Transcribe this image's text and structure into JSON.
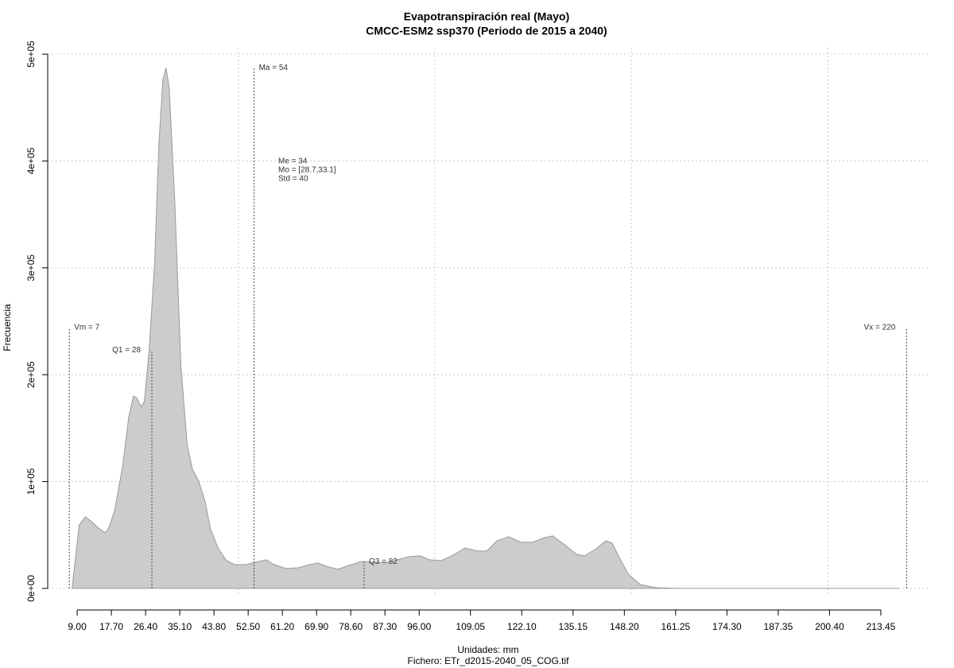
{
  "chart_data": {
    "type": "area",
    "title": "Evapotranspiración real (Mayo)",
    "subtitle": "CMCC-ESM2 ssp370 (Periodo de 2015 a 2040)",
    "xlabel": "Unidades: mm",
    "caption": "Fichero: ETr_d2015-2040_05_COG.tif",
    "ylabel": "Frecuencia",
    "fill_color": "#cccccc",
    "line_color": "#999999",
    "grid": true,
    "xlim": [
      1.5,
      226
    ],
    "ylim": [
      -7500,
      506000
    ],
    "xgrid": [
      50,
      100,
      150,
      200
    ],
    "xticks": [
      {
        "value": 9,
        "label": "9.00"
      },
      {
        "value": 17.7,
        "label": "17.70"
      },
      {
        "value": 26.4,
        "label": "26.40"
      },
      {
        "value": 35.1,
        "label": "35.10"
      },
      {
        "value": 43.8,
        "label": "43.80"
      },
      {
        "value": 52.5,
        "label": "52.50"
      },
      {
        "value": 61.2,
        "label": "61.20"
      },
      {
        "value": 69.9,
        "label": "69.90"
      },
      {
        "value": 78.6,
        "label": "78.60"
      },
      {
        "value": 87.3,
        "label": "87.30"
      },
      {
        "value": 96,
        "label": "96.00"
      },
      {
        "value": 109.05,
        "label": "109.05"
      },
      {
        "value": 122.1,
        "label": "122.10"
      },
      {
        "value": 135.15,
        "label": "135.15"
      },
      {
        "value": 148.2,
        "label": "148.20"
      },
      {
        "value": 161.25,
        "label": "161.25"
      },
      {
        "value": 174.3,
        "label": "174.30"
      },
      {
        "value": 187.35,
        "label": "187.35"
      },
      {
        "value": 200.4,
        "label": "200.40"
      },
      {
        "value": 213.45,
        "label": "213.45"
      }
    ],
    "yticks": [
      {
        "value": 0,
        "label": "0e+00"
      },
      {
        "value": 100000,
        "label": "1e+05"
      },
      {
        "value": 200000,
        "label": "2e+05"
      },
      {
        "value": 300000,
        "label": "3e+05"
      },
      {
        "value": 400000,
        "label": "4e+05"
      },
      {
        "value": 500000,
        "label": "5e+05"
      }
    ],
    "density": {
      "x": [
        7.7,
        9.5,
        11.1,
        12.5,
        14.6,
        16.2,
        17.2,
        18.6,
        20.6,
        22.1,
        23.3,
        24.1,
        25.3,
        26.1,
        27.3,
        28.7,
        29.8,
        30.8,
        31.6,
        32.4,
        33.8,
        35.4,
        37.0,
        38.3,
        39.9,
        41.5,
        42.9,
        44.9,
        47.0,
        49.0,
        52.0,
        54.5,
        57.1,
        59.1,
        62.1,
        65.2,
        68.2,
        70.2,
        72.3,
        75.3,
        78.3,
        81.4,
        84.4,
        87.4,
        90.5,
        93.5,
        96.2,
        98.6,
        101.6,
        104.7,
        107.7,
        110.7,
        113.2,
        115.8,
        118.8,
        121.9,
        124.9,
        127.9,
        130.0,
        133.0,
        136.0,
        138.1,
        141.1,
        143.5,
        145.1,
        146.8,
        149.2,
        152.2,
        156.3,
        161.3,
        218
      ],
      "y": [
        0,
        59500,
        67000,
        63000,
        56000,
        52000,
        58000,
        74000,
        115000,
        160000,
        180000,
        178500,
        170000,
        175000,
        223000,
        305000,
        416700,
        476000,
        487000,
        469000,
        364600,
        208000,
        134000,
        111600,
        100400,
        81800,
        55800,
        37200,
        26000,
        22300,
        22300,
        24600,
        26800,
        22300,
        18600,
        19300,
        22300,
        23800,
        20800,
        17900,
        21600,
        25300,
        24600,
        23800,
        26800,
        29800,
        30500,
        26800,
        26000,
        31300,
        37900,
        35000,
        35000,
        44600,
        48400,
        43200,
        43200,
        47600,
        49100,
        40900,
        32000,
        30500,
        37200,
        44600,
        42400,
        29800,
        13400,
        3700,
        700,
        0,
        0
      ]
    },
    "markers": [
      {
        "label": "Vm = 7",
        "x": 7,
        "top": 244000
      },
      {
        "label": "Q1 = 28",
        "x": 28,
        "top": 223000
      },
      {
        "label": "Ma = 54",
        "x": 54,
        "top": 487000
      },
      {
        "label": "Q3 = 82",
        "x": 82,
        "top": 25000
      },
      {
        "label": "Vx = 220",
        "x": 220,
        "top": 244000
      }
    ],
    "stats": [
      "Me = 34",
      "Mo = [28.7,33.1]",
      "Std = 40"
    ]
  }
}
